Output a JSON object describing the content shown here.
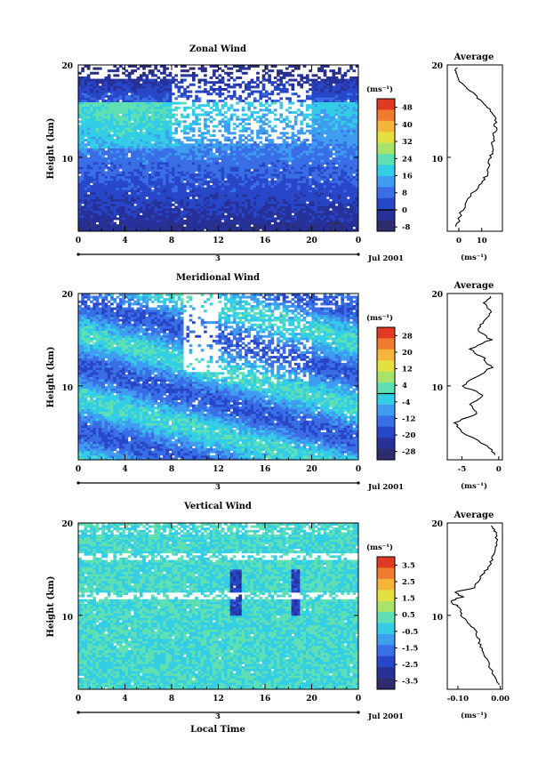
{
  "figure": {
    "common_xlabel": "Local Time",
    "xticks": [
      "0",
      "4",
      "8",
      "12",
      "16",
      "20",
      "0"
    ],
    "date_day": "3",
    "date_label": "Jul 2001",
    "ylabel": "Height (km)",
    "yticks": [
      "20",
      "10"
    ],
    "unit_label": "(ms⁻¹)",
    "profile_title": "Average"
  },
  "chart_data": [
    {
      "type": "heatmap",
      "title": "Zonal Wind",
      "xlabel": "Local Time",
      "ylabel": "Height (km)",
      "xlim": [
        0,
        24
      ],
      "ylim": [
        2,
        20
      ],
      "colorbar": {
        "unit": "(ms⁻¹)",
        "ticks": [
          "48",
          "40",
          "32",
          "24",
          "16",
          "8",
          "0",
          "-8"
        ],
        "min": -10,
        "max": 52,
        "contour_level": 0
      },
      "profile": {
        "title": "Average",
        "xlabel": "(ms⁻¹)",
        "xticks": [
          "0",
          "10"
        ],
        "xlim": [
          -5,
          19
        ],
        "heights": [
          2.5,
          4,
          5.5,
          7,
          8,
          9,
          10,
          11,
          12,
          13,
          14,
          15,
          16,
          17,
          18,
          19,
          19.7
        ],
        "values": [
          -1,
          1,
          4,
          9,
          12,
          13,
          14,
          15,
          15,
          16,
          16,
          14,
          10,
          6,
          1,
          -1,
          -1
        ]
      }
    },
    {
      "type": "heatmap",
      "title": "Meridional Wind",
      "xlabel": "Local Time",
      "ylabel": "Height (km)",
      "xlim": [
        0,
        24
      ],
      "ylim": [
        2,
        20
      ],
      "colorbar": {
        "unit": "(ms⁻¹)",
        "ticks": [
          "28",
          "20",
          "12",
          "4",
          "-4",
          "-12",
          "-20",
          "-28"
        ],
        "min": -32,
        "max": 32,
        "contour_level": 0
      },
      "profile": {
        "title": "Average",
        "xlabel": "(ms⁻¹)",
        "xticks": [
          "-5",
          "0"
        ],
        "xlim": [
          -7,
          0.5
        ],
        "heights": [
          2.5,
          3.5,
          5,
          6,
          7,
          8,
          9,
          10,
          11,
          12,
          13,
          14,
          15,
          16,
          17,
          18,
          19,
          19.7
        ],
        "values": [
          -0.5,
          -1.5,
          -5,
          -6,
          -3,
          -4,
          -2,
          -5,
          -3,
          -1,
          -2,
          -4,
          -1,
          -3,
          -2,
          -1,
          -2,
          -1
        ]
      }
    },
    {
      "type": "heatmap",
      "title": "Vertical Wind",
      "xlabel": "Local Time",
      "ylabel": "Height (km)",
      "xlim": [
        0,
        24
      ],
      "ylim": [
        2,
        20
      ],
      "colorbar": {
        "unit": "(ms⁻¹)",
        "ticks": [
          "3.5",
          "2.5",
          "1.5",
          "0.5",
          "-0.5",
          "-1.5",
          "-2.5",
          "-3.5"
        ],
        "min": -4,
        "max": 4
      },
      "profile": {
        "title": "Average",
        "xlabel": "(ms⁻¹)",
        "xticks": [
          "-0.10",
          "0.00"
        ],
        "xlim": [
          -0.125,
          0.005
        ],
        "heights": [
          2.5,
          4,
          6,
          7,
          8,
          9,
          10,
          11,
          11.5,
          12,
          12.5,
          13,
          14,
          15,
          16,
          17,
          18,
          19,
          19.7
        ],
        "values": [
          -0.005,
          -0.02,
          -0.04,
          -0.05,
          -0.055,
          -0.07,
          -0.09,
          -0.1,
          -0.12,
          -0.09,
          -0.11,
          -0.06,
          -0.05,
          -0.03,
          -0.02,
          -0.01,
          -0.01,
          -0.01,
          -0.02
        ]
      }
    }
  ]
}
